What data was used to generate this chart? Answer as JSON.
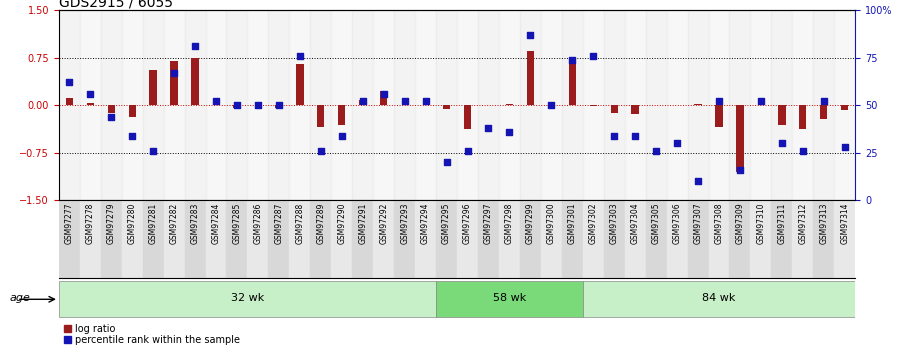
{
  "title": "GDS2915 / 6055",
  "samples": [
    "GSM97277",
    "GSM97278",
    "GSM97279",
    "GSM97280",
    "GSM97281",
    "GSM97282",
    "GSM97283",
    "GSM97284",
    "GSM97285",
    "GSM97286",
    "GSM97287",
    "GSM97288",
    "GSM97289",
    "GSM97290",
    "GSM97291",
    "GSM97292",
    "GSM97293",
    "GSM97294",
    "GSM97295",
    "GSM97296",
    "GSM97297",
    "GSM97298",
    "GSM97299",
    "GSM97300",
    "GSM97301",
    "GSM97302",
    "GSM97303",
    "GSM97304",
    "GSM97305",
    "GSM97306",
    "GSM97307",
    "GSM97308",
    "GSM97309",
    "GSM97310",
    "GSM97311",
    "GSM97312",
    "GSM97313",
    "GSM97314"
  ],
  "log_ratio": [
    0.12,
    0.04,
    -0.12,
    -0.18,
    0.55,
    0.7,
    0.75,
    0.01,
    -0.04,
    0.01,
    -0.04,
    0.65,
    -0.35,
    -0.32,
    0.08,
    0.22,
    0.0,
    0.01,
    -0.06,
    -0.38,
    0.0,
    0.02,
    0.85,
    -0.02,
    0.7,
    -0.02,
    -0.12,
    -0.14,
    0.0,
    0.0,
    0.02,
    -0.35,
    -1.05,
    0.01,
    -0.32,
    -0.38,
    -0.22,
    -0.08
  ],
  "percentile": [
    62,
    56,
    44,
    34,
    26,
    67,
    81,
    52,
    50,
    50,
    50,
    76,
    26,
    34,
    52,
    56,
    52,
    52,
    20,
    26,
    38,
    36,
    87,
    50,
    74,
    76,
    34,
    34,
    26,
    30,
    10,
    52,
    16,
    52,
    30,
    26,
    52,
    28
  ],
  "group_labels": [
    "32 wk",
    "58 wk",
    "84 wk"
  ],
  "group_ranges": [
    [
      0,
      18
    ],
    [
      18,
      25
    ],
    [
      25,
      38
    ]
  ],
  "group_colors_32": "#c8f0c8",
  "group_colors_58": "#7ada7a",
  "group_colors_84": "#c8f0c8",
  "bar_color": "#9b1c1c",
  "dot_color": "#1414b4",
  "zero_line_color": "#cc0000",
  "ylim": [
    -1.5,
    1.5
  ],
  "yticks_left": [
    -1.5,
    -0.75,
    0.0,
    0.75,
    1.5
  ],
  "yticks_right": [
    0,
    25,
    50,
    75,
    100
  ],
  "ytick_labels_right": [
    "0",
    "25",
    "50",
    "75",
    "100%"
  ],
  "hline_values": [
    -0.75,
    0.75
  ],
  "legend_items": [
    "log ratio",
    "percentile rank within the sample"
  ],
  "legend_colors": [
    "#9b1c1c",
    "#1414b4"
  ],
  "age_label": "age",
  "background_color": "#ffffff",
  "title_fontsize": 10,
  "tick_fontsize": 7,
  "label_fontsize": 5.5,
  "group_fontsize": 8,
  "legend_fontsize": 7
}
